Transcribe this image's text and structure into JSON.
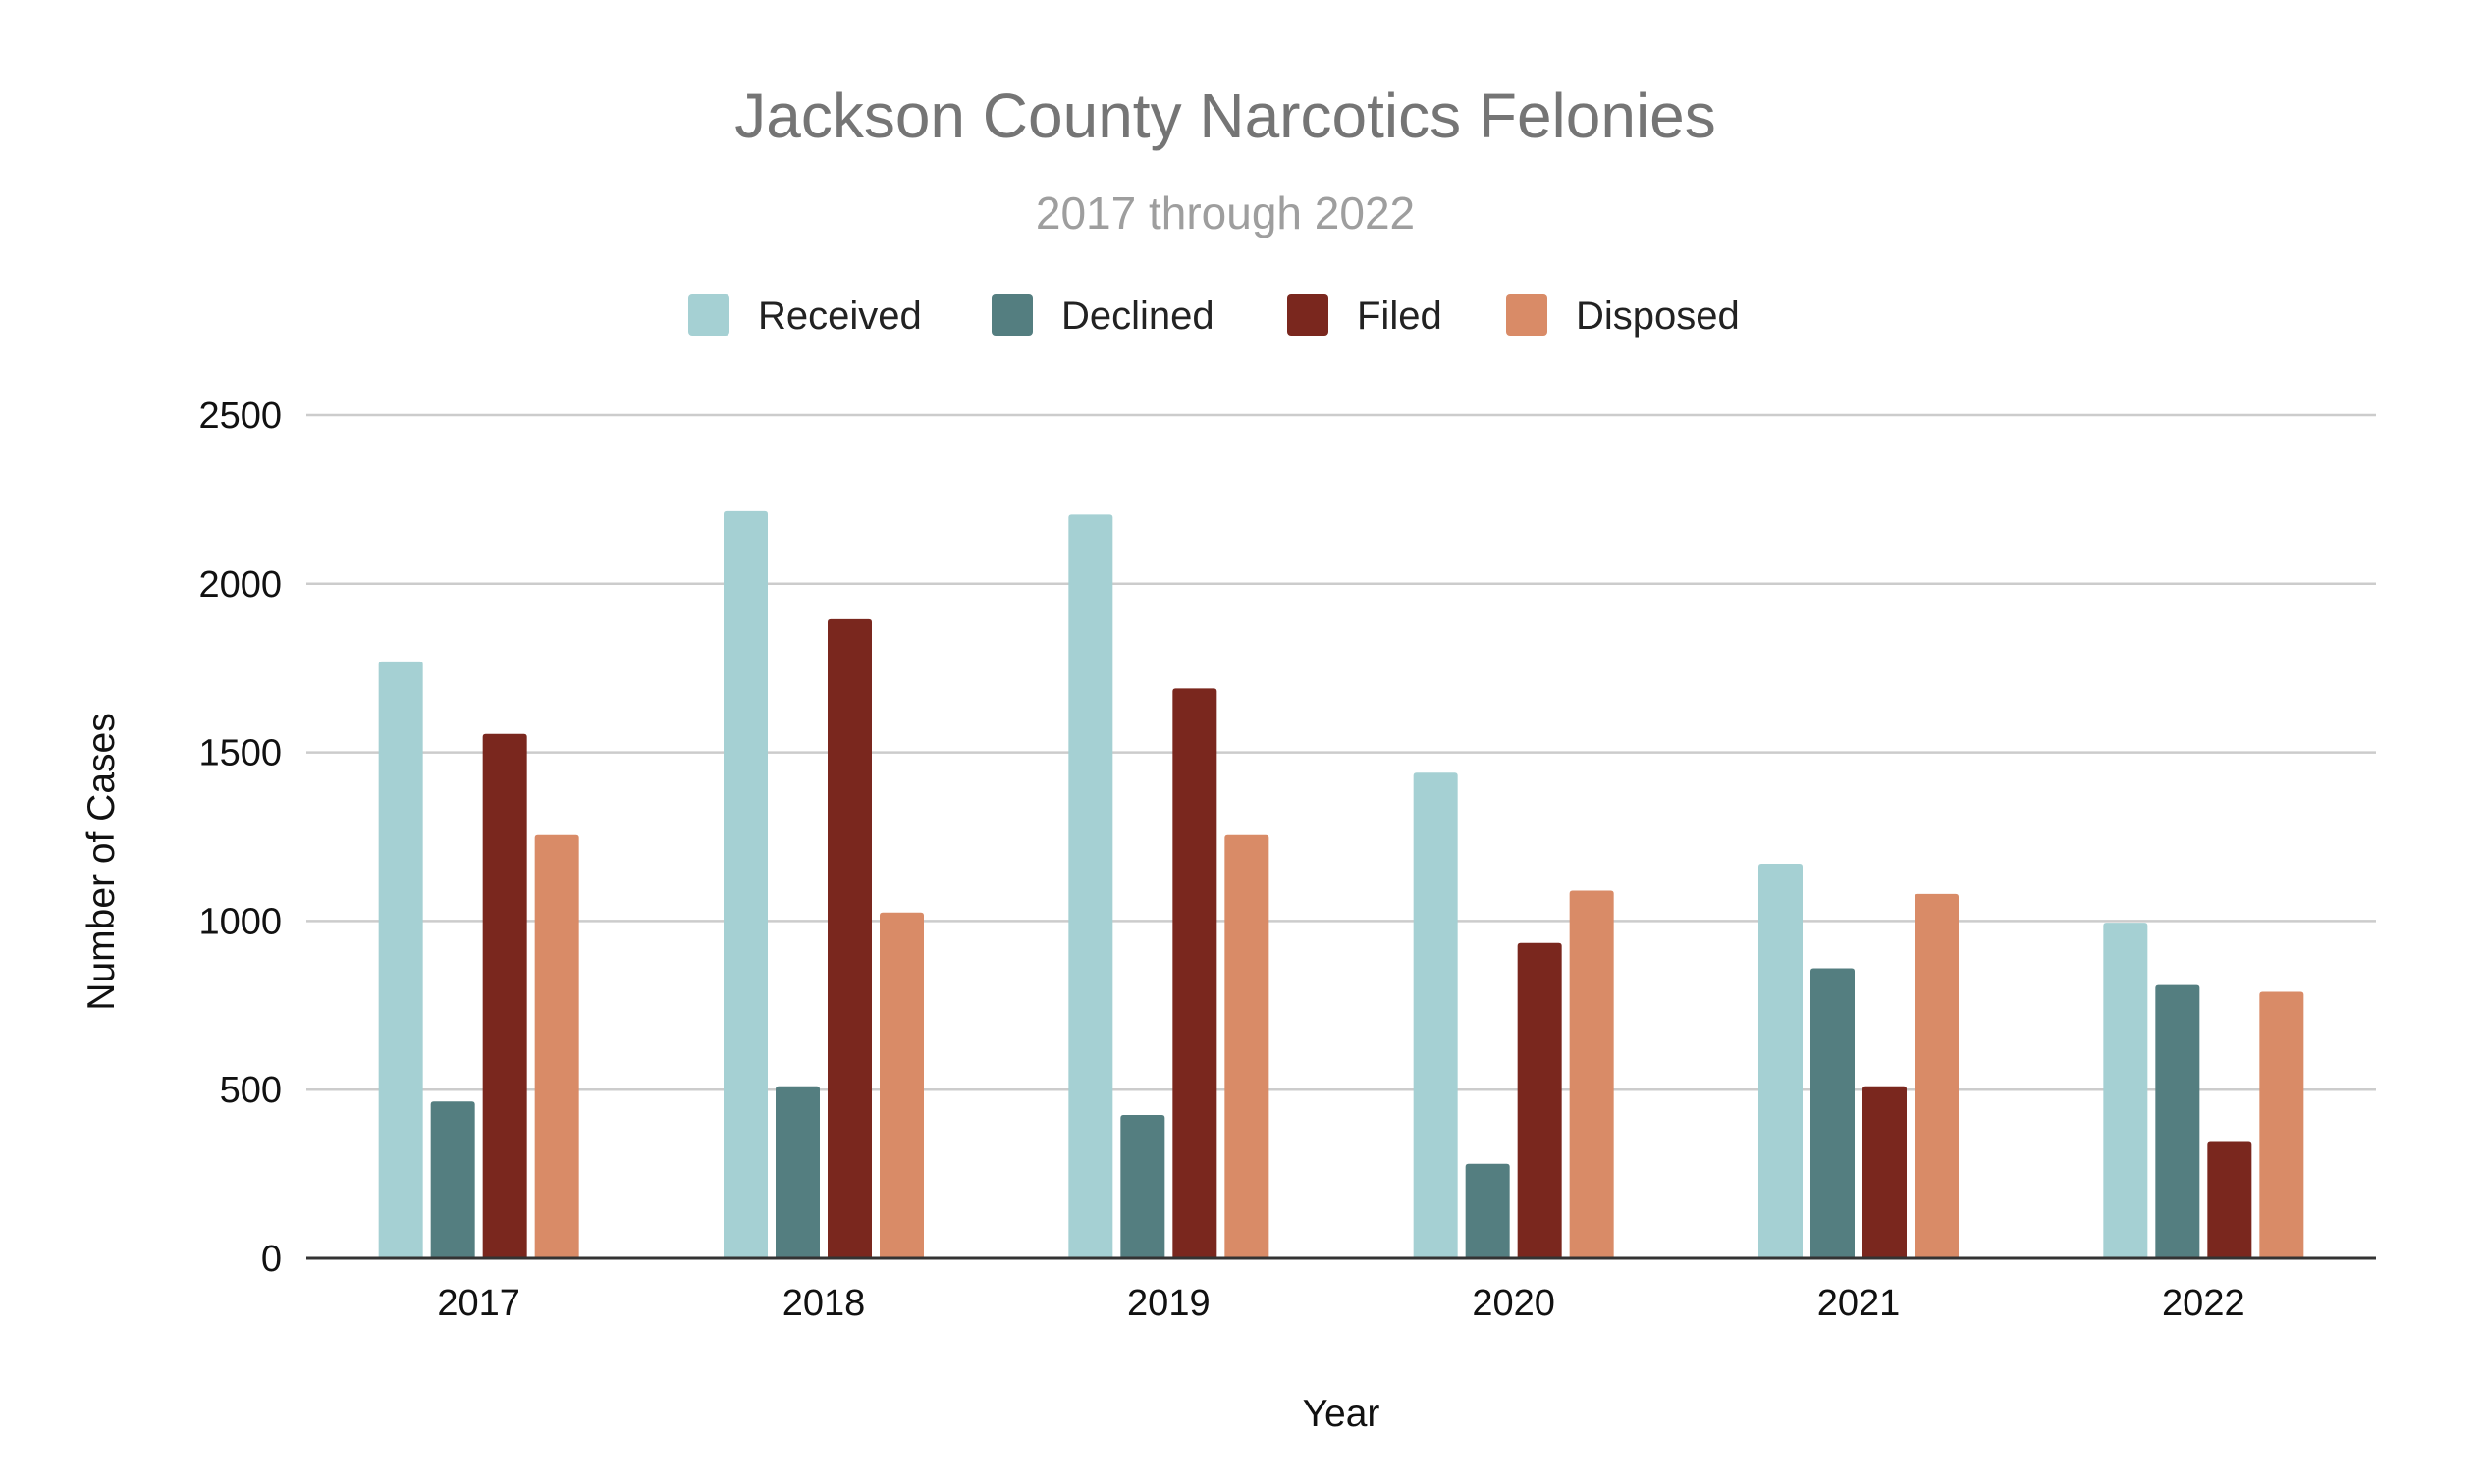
{
  "chart_data": {
    "type": "bar",
    "title": "Jackson County Narcotics Felonies",
    "subtitle": "2017 through 2022",
    "xlabel": "Year",
    "ylabel": "Number of Cases",
    "categories": [
      "2017",
      "2018",
      "2019",
      "2020",
      "2021",
      "2022"
    ],
    "series": [
      {
        "name": "Received",
        "color": "#a5d0d3",
        "values": [
          1770,
          2215,
          2205,
          1440,
          1170,
          995
        ]
      },
      {
        "name": "Declined",
        "color": "#547e80",
        "values": [
          465,
          510,
          425,
          280,
          860,
          810
        ]
      },
      {
        "name": "Filed",
        "color": "#7a271e",
        "values": [
          1555,
          1895,
          1690,
          935,
          510,
          345
        ]
      },
      {
        "name": "Disposed",
        "color": "#d98b67",
        "values": [
          1255,
          1025,
          1255,
          1090,
          1080,
          790
        ]
      }
    ],
    "ylim": [
      0,
      2500
    ],
    "yticks": [
      0,
      500,
      1000,
      1500,
      2000,
      2500
    ],
    "ytick_labels": [
      "0",
      "500",
      "1000",
      "1500",
      "2000",
      "2500"
    ],
    "grid": true,
    "legend_position": "top"
  }
}
